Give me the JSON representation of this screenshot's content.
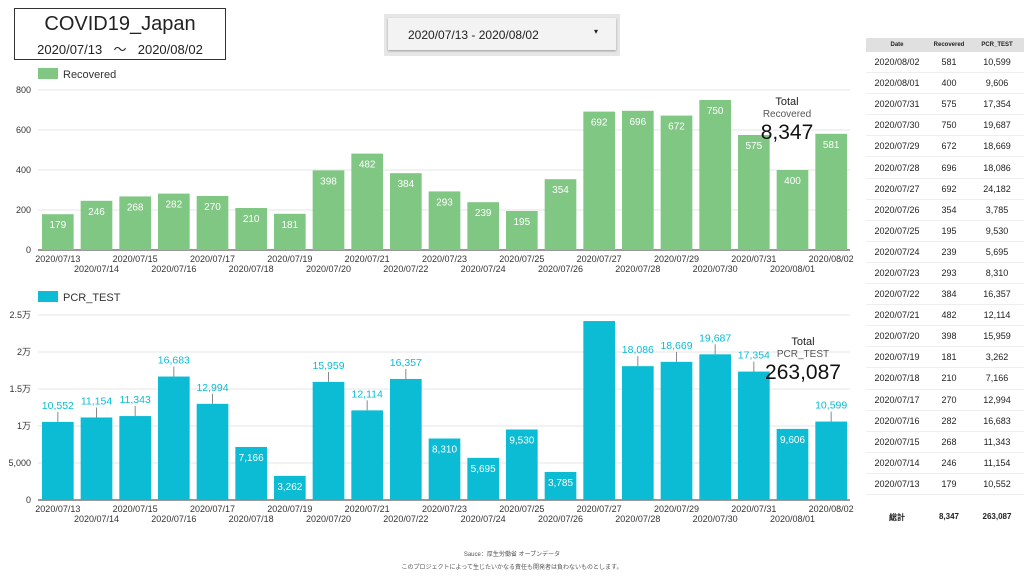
{
  "header": {
    "title": "COVID19_Japan",
    "start": "2020/07/13",
    "sep": "〜",
    "end": "2020/08/02"
  },
  "date_picker": {
    "value": "2020/07/13 - 2020/08/02",
    "arrow": "▾"
  },
  "colors": {
    "recovered": "#81c784",
    "pcr": "#0bbcd4"
  },
  "chart_data": [
    {
      "type": "bar",
      "legend": "Recovered",
      "legend_position": "top-left",
      "grid": true,
      "ylim": [
        0,
        800
      ],
      "yticks": [
        "0",
        "200",
        "400",
        "600",
        "800"
      ],
      "ytick_values": [
        0,
        200,
        400,
        600,
        800
      ],
      "categories": [
        "2020/07/13",
        "2020/07/14",
        "2020/07/15",
        "2020/07/16",
        "2020/07/17",
        "2020/07/18",
        "2020/07/19",
        "2020/07/20",
        "2020/07/21",
        "2020/07/22",
        "2020/07/23",
        "2020/07/24",
        "2020/07/25",
        "2020/07/26",
        "2020/07/27",
        "2020/07/28",
        "2020/07/29",
        "2020/07/30",
        "2020/07/31",
        "2020/08/01",
        "2020/08/02"
      ],
      "values": [
        179,
        246,
        268,
        282,
        270,
        210,
        181,
        398,
        482,
        384,
        293,
        239,
        195,
        354,
        692,
        696,
        672,
        750,
        575,
        400,
        581
      ],
      "total_label": "Total",
      "total_sub": "Recovered",
      "total": "8,347"
    },
    {
      "type": "bar",
      "legend": "PCR_TEST",
      "legend_position": "top-left",
      "grid": true,
      "ylim": [
        0,
        25000
      ],
      "yticks": [
        "0",
        "5,000",
        "1万",
        "1.5万",
        "2万",
        "2.5万"
      ],
      "ytick_values": [
        0,
        5000,
        10000,
        15000,
        20000,
        25000
      ],
      "categories": [
        "2020/07/13",
        "2020/07/14",
        "2020/07/15",
        "2020/07/16",
        "2020/07/17",
        "2020/07/18",
        "2020/07/19",
        "2020/07/20",
        "2020/07/21",
        "2020/07/22",
        "2020/07/23",
        "2020/07/24",
        "2020/07/25",
        "2020/07/26",
        "2020/07/27",
        "2020/07/28",
        "2020/07/29",
        "2020/07/30",
        "2020/07/31",
        "2020/08/01",
        "2020/08/02"
      ],
      "values": [
        10552,
        11154,
        11343,
        16683,
        12994,
        7166,
        3262,
        15959,
        12114,
        16357,
        8310,
        5695,
        9530,
        3785,
        24182,
        18086,
        18669,
        19687,
        17354,
        9606,
        10599
      ],
      "labels": [
        "10,552",
        "11,154",
        "11,343",
        "16,683",
        "12,994",
        "7,166",
        "3,262",
        "15,959",
        "12,114",
        "16,357",
        "8,310",
        "5,695",
        "9,530",
        "3,785",
        "",
        "18,086",
        "18,669",
        "19,687",
        "17,354",
        "9,606",
        "10,599"
      ],
      "total_label": "Total",
      "total_sub": "PCR_TEST",
      "total": "263,087"
    }
  ],
  "table": {
    "headers": [
      "Date",
      "Recovered",
      "PCR_TEST"
    ],
    "rows": [
      [
        "2020/08/02",
        "581",
        "10,599"
      ],
      [
        "2020/08/01",
        "400",
        "9,606"
      ],
      [
        "2020/07/31",
        "575",
        "17,354"
      ],
      [
        "2020/07/30",
        "750",
        "19,687"
      ],
      [
        "2020/07/29",
        "672",
        "18,669"
      ],
      [
        "2020/07/28",
        "696",
        "18,086"
      ],
      [
        "2020/07/27",
        "692",
        "24,182"
      ],
      [
        "2020/07/26",
        "354",
        "3,785"
      ],
      [
        "2020/07/25",
        "195",
        "9,530"
      ],
      [
        "2020/07/24",
        "239",
        "5,695"
      ],
      [
        "2020/07/23",
        "293",
        "8,310"
      ],
      [
        "2020/07/22",
        "384",
        "16,357"
      ],
      [
        "2020/07/21",
        "482",
        "12,114"
      ],
      [
        "2020/07/20",
        "398",
        "15,959"
      ],
      [
        "2020/07/19",
        "181",
        "3,262"
      ],
      [
        "2020/07/18",
        "210",
        "7,166"
      ],
      [
        "2020/07/17",
        "270",
        "12,994"
      ],
      [
        "2020/07/16",
        "282",
        "16,683"
      ],
      [
        "2020/07/15",
        "268",
        "11,343"
      ],
      [
        "2020/07/14",
        "246",
        "11,154"
      ],
      [
        "2020/07/13",
        "179",
        "10,552"
      ]
    ],
    "total": [
      "総計",
      "8,347",
      "263,087"
    ]
  },
  "footer": {
    "source": "Sauce：厚生労働省 オープンデータ",
    "disclaimer": "このプロジェクトによって生じたいかなる責任も開発者は負わないものとします。"
  }
}
